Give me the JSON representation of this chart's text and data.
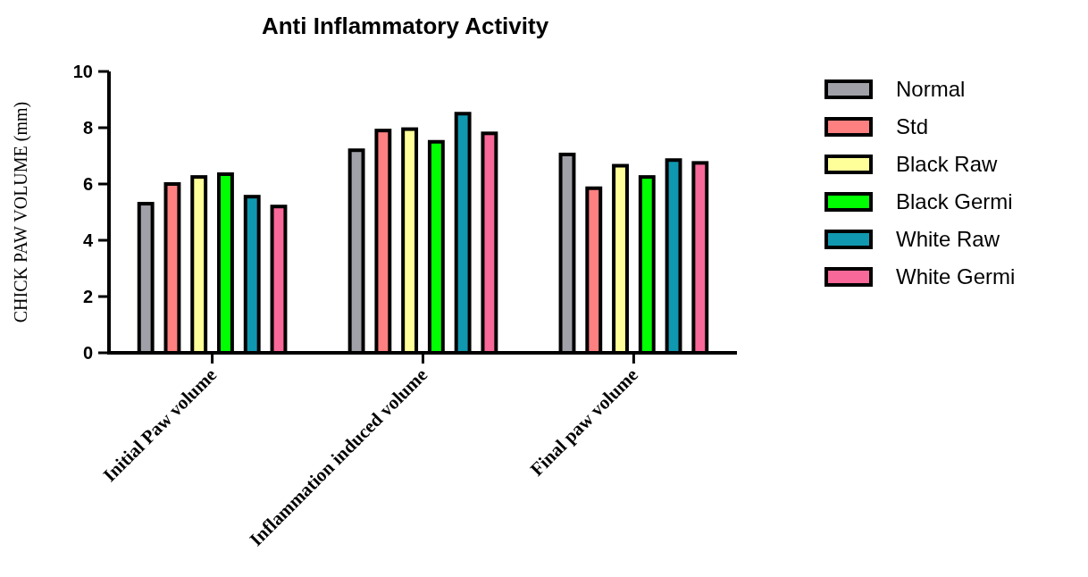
{
  "chart_data": {
    "type": "bar",
    "title": "Anti Inflammatory Activity",
    "ylabel": "CHICK PAW VOLUME (mm)",
    "categories": [
      "Initial Paw volume",
      "Inflammation induced volume",
      "Final paw volume"
    ],
    "series": [
      {
        "name": "Normal",
        "color": "#a0a0a8",
        "values": [
          5.3,
          7.2,
          7.05
        ]
      },
      {
        "name": "Std",
        "color": "#ff8080",
        "values": [
          6.0,
          7.9,
          5.85
        ]
      },
      {
        "name": "Black Raw",
        "color": "#ffff99",
        "values": [
          6.25,
          7.95,
          6.65
        ]
      },
      {
        "name": "Black Germi",
        "color": "#00ff00",
        "values": [
          6.35,
          7.5,
          6.25
        ]
      },
      {
        "name": "White Raw",
        "color": "#1098b0",
        "values": [
          5.55,
          8.5,
          6.85
        ]
      },
      {
        "name": "White Germi",
        "color": "#f86898",
        "values": [
          5.2,
          7.8,
          6.75
        ]
      }
    ],
    "ylim": [
      0,
      10
    ],
    "yticks": [
      0,
      2,
      4,
      6,
      8,
      10
    ],
    "grid": false,
    "legend": "right"
  }
}
